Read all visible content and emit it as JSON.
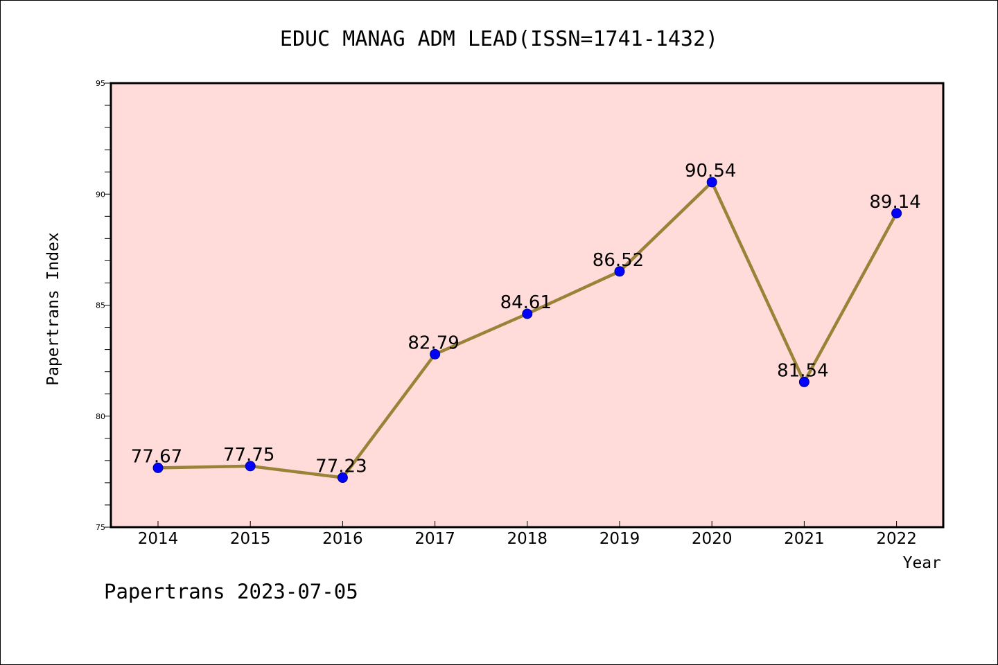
{
  "footer_text": "Papertrans 2023-07-05",
  "chart_data": {
    "type": "line",
    "title": "EDUC MANAG ADM LEAD(ISSN=1741-1432)",
    "xlabel": "Year",
    "ylabel": "Papertrans Index",
    "categories": [
      "2014",
      "2015",
      "2016",
      "2017",
      "2018",
      "2019",
      "2020",
      "2021",
      "2022"
    ],
    "values": [
      77.67,
      77.75,
      77.23,
      82.79,
      84.61,
      86.52,
      90.54,
      81.54,
      89.14
    ],
    "ylim": [
      75,
      95
    ],
    "yticks": [
      75,
      80,
      85,
      90,
      95
    ],
    "grid": false,
    "colors": {
      "plot_background": "#FFDCD9",
      "line": "#9A8238",
      "marker": "#0000FF"
    }
  }
}
